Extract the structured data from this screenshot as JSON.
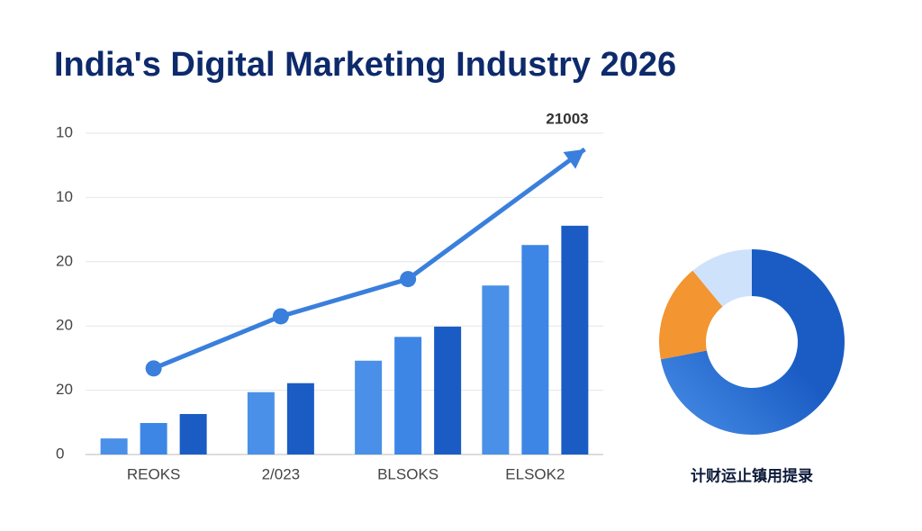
{
  "chart_data": [
    {
      "type": "bar",
      "title": "India's Digital Marketing Industry 2026",
      "annotation": "21003",
      "categories": [
        "REOKS",
        "2/023",
        "BLSOKS",
        "ELSOK2"
      ],
      "series": [
        {
          "color": "#4a90e8",
          "values": [
            0.25,
            0.97,
            1.46,
            2.63
          ]
        },
        {
          "color": "#3d86e6",
          "values": [
            0.49,
            null,
            1.83,
            3.26
          ]
        },
        {
          "color": "#1a5cc4",
          "values": [
            0.63,
            1.11,
            1.99,
            3.56
          ]
        }
      ],
      "line": {
        "color": "#3a7fdc",
        "values": [
          1.34,
          2.15,
          2.73,
          4.75
        ]
      },
      "ylim": [
        0,
        5
      ],
      "yticks": [
        0,
        {
          "value": 1,
          "label": "20"
        },
        {
          "value": 2,
          "label": "20"
        },
        {
          "value": 3,
          "label": "20"
        },
        {
          "value": 4,
          "label": "10"
        },
        {
          "value": 5,
          "label": "10"
        }
      ],
      "grid": true
    },
    {
      "type": "pie",
      "title": "计财运止镇用提录",
      "values": [
        72,
        17,
        11
      ],
      "colors": [
        "#1a5cc4",
        "#f39530",
        "#cfe2fb"
      ],
      "light_color": "#4a90e8",
      "donut": true
    }
  ]
}
